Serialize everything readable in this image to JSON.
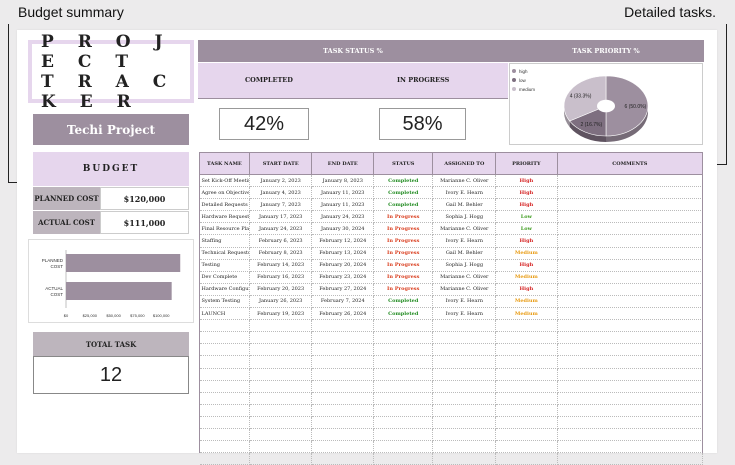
{
  "callouts": {
    "left": "Budget summary",
    "right": "Detailed tasks."
  },
  "logo": {
    "line1": "P R O J E C T",
    "line2": "T R A C K E R"
  },
  "project_name": "Techi Project",
  "budget": {
    "title": "BUDGET",
    "planned_label": "PLANNED COST",
    "planned_value": "$120,000",
    "actual_label": "ACTUAL COST",
    "actual_value": "$111,000"
  },
  "total": {
    "label": "TOTAL TASK",
    "value": "12"
  },
  "status": {
    "title": "TASK STATUS %",
    "completed_label": "COMPLETED",
    "inprogress_label": "IN PROGRESS",
    "completed_pct": "42%",
    "inprogress_pct": "58%"
  },
  "priority": {
    "title": "TASK PRIORITY %"
  },
  "table": {
    "headers": [
      "TASK NAME",
      "START DATE",
      "END DATE",
      "STATUS",
      "ASSIGNED TO",
      "PRIORITY",
      "COMMENTS"
    ],
    "rows": [
      [
        "Set Kick-Off Meeting",
        "January 2, 2023",
        "January 8, 2023",
        "Completed",
        "Marianne C. Oliver",
        "High",
        ""
      ],
      [
        "Agree on Objectives",
        "January 4, 2023",
        "January 11, 2023",
        "Completed",
        "Ivory E. Hearn",
        "High",
        ""
      ],
      [
        "Detailed Requests",
        "January 7, 2023",
        "January 11, 2023",
        "Completed",
        "Gail M. Behler",
        "High",
        ""
      ],
      [
        "Hardware Requests",
        "January 17, 2023",
        "January 24, 2023",
        "In Progress",
        "Sophia J. Hogg",
        "Low",
        ""
      ],
      [
        "Final Resource Plan",
        "January 24, 2023",
        "January 30, 2024",
        "In Progress",
        "Marianne C. Oliver",
        "Low",
        ""
      ],
      [
        "Staffing",
        "February 6, 2023",
        "February 12, 2024",
        "In Progress",
        "Ivory E. Hearn",
        "High",
        ""
      ],
      [
        "Technical Requests",
        "February 8, 2023",
        "February 13, 2024",
        "In Progress",
        "Gail M. Behler",
        "Medium",
        ""
      ],
      [
        "Testing",
        "February 14, 2023",
        "February 20, 2024",
        "In Progress",
        "Sophia J. Hogg",
        "High",
        ""
      ],
      [
        "Dev Complete",
        "February 16, 2023",
        "February 23, 2024",
        "In Progress",
        "Marianne C. Oliver",
        "Medium",
        ""
      ],
      [
        "Hardware Configuration",
        "February 20, 2023",
        "February 27, 2024",
        "In Progress",
        "Marianne C. Oliver",
        "High",
        ""
      ],
      [
        "System Testing",
        "January 26, 2023",
        "February 7, 2024",
        "Completed",
        "Ivory E. Hearn",
        "Medium",
        ""
      ],
      [
        "LAUNCH",
        "February 19, 2023",
        "February 26, 2024",
        "Completed",
        "Ivory E. Hearn",
        "Medium",
        ""
      ]
    ],
    "empty_rows": 12
  },
  "colors": {
    "accent": "#9d8f9f",
    "lavender": "#e6d6ed",
    "gray": "#bdb5bd",
    "completed": "#1f8a1f",
    "in_progress": "#d93a1a",
    "high": "#d42020",
    "low": "#3a9a1a",
    "medium": "#e89a10"
  },
  "chart_data": [
    {
      "type": "bar",
      "orientation": "horizontal",
      "categories": [
        "PLANNED COST",
        "ACTUAL COST"
      ],
      "values": [
        120000,
        111000
      ],
      "xlim": [
        0,
        125000
      ],
      "xticks": [
        "$0",
        "$25,000",
        "$50,000",
        "$75,000",
        "$100,000"
      ],
      "grid": false
    },
    {
      "type": "pie",
      "legend": [
        "high",
        "low",
        "medium"
      ],
      "legend_position": "top-left",
      "slices": [
        {
          "name": "high",
          "value": 6,
          "label": "6 (50.0%)",
          "color": "#9d8f9f"
        },
        {
          "name": "low",
          "value": 2,
          "label": "2 (16.7%)",
          "color": "#7e6f80"
        },
        {
          "name": "medium",
          "value": 4,
          "label": "4 (33.3%)",
          "color": "#c9bfcb"
        }
      ]
    }
  ]
}
